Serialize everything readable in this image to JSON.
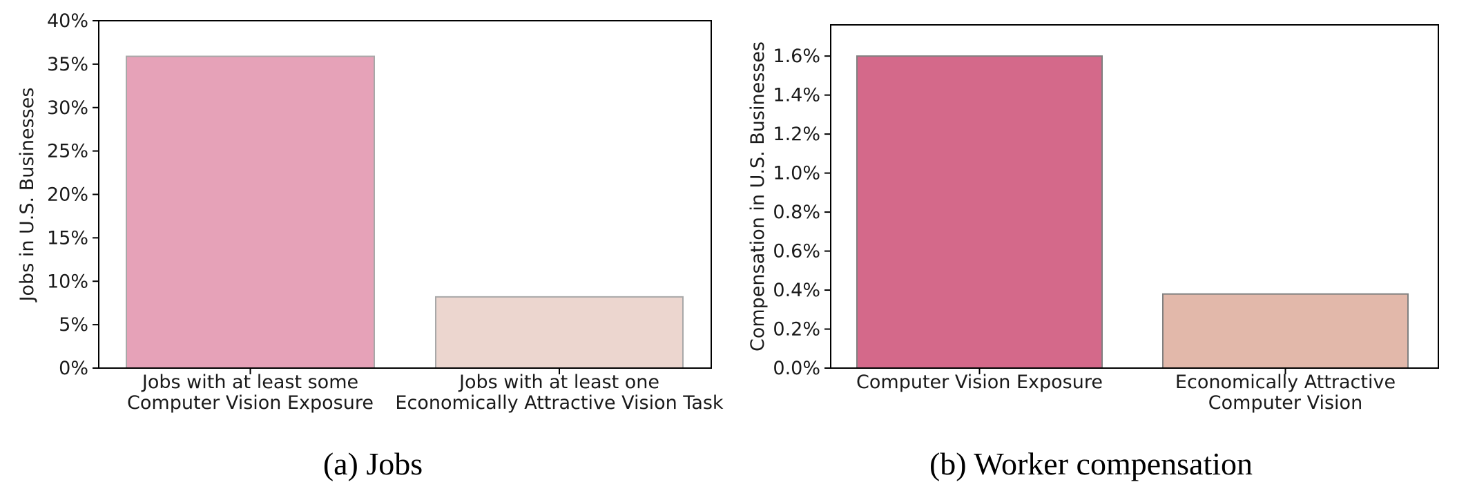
{
  "chart_data": [
    {
      "type": "bar",
      "caption": "(a) Jobs",
      "ylabel": "Jobs in U.S. Businesses",
      "ylim": [
        0,
        40
      ],
      "yticks": [
        {
          "value": 0,
          "label": "0%"
        },
        {
          "value": 5,
          "label": "5%"
        },
        {
          "value": 10,
          "label": "10%"
        },
        {
          "value": 15,
          "label": "15%"
        },
        {
          "value": 20,
          "label": "20%"
        },
        {
          "value": 25,
          "label": "25%"
        },
        {
          "value": 30,
          "label": "30%"
        },
        {
          "value": 35,
          "label": "35%"
        },
        {
          "value": 40,
          "label": "40%"
        }
      ],
      "categories": [
        [
          "Jobs with at least some",
          "Computer Vision Exposure"
        ],
        [
          "Jobs with at least one",
          "Economically Attractive Vision Task"
        ]
      ],
      "values": [
        35.9,
        8.2
      ],
      "colors": [
        "#e6a2b8",
        "#ecd6cf"
      ],
      "edge_color": "#a8a8a8",
      "grid": false
    },
    {
      "type": "bar",
      "caption": "(b) Worker compensation",
      "ylabel": "Compensation in U.S. Businesses",
      "ylim": [
        0,
        1.76
      ],
      "yticks": [
        {
          "value": 0.0,
          "label": "0.0%"
        },
        {
          "value": 0.2,
          "label": "0.2%"
        },
        {
          "value": 0.4,
          "label": "0.4%"
        },
        {
          "value": 0.6,
          "label": "0.6%"
        },
        {
          "value": 0.8,
          "label": "0.8%"
        },
        {
          "value": 1.0,
          "label": "1.0%"
        },
        {
          "value": 1.2,
          "label": "1.2%"
        },
        {
          "value": 1.4,
          "label": "1.4%"
        },
        {
          "value": 1.6,
          "label": "1.6%"
        }
      ],
      "categories": [
        [
          "Computer Vision Exposure"
        ],
        [
          "Economically Attractive",
          "Computer Vision"
        ]
      ],
      "values": [
        1.6,
        0.38
      ],
      "colors": [
        "#d4698a",
        "#e2b8aa"
      ],
      "edge_color": "#808080",
      "grid": false
    }
  ]
}
